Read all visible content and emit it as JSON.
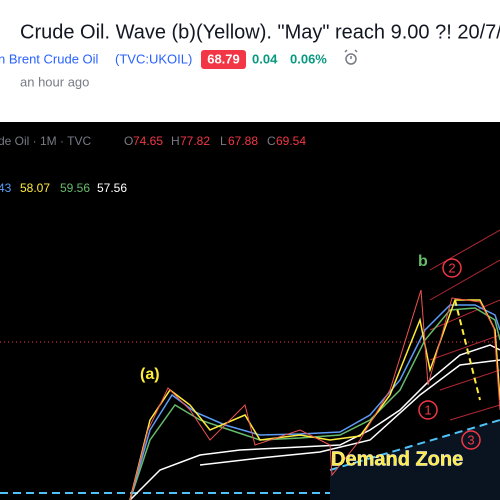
{
  "header": {
    "title": "Crude Oil. Wave (b)(Yellow). \"May\" reach 9.00 ?! 20/7/",
    "symbol_name": "n Brent Crude Oil",
    "symbol_code": "(TVC:UKOIL)",
    "price": "68.79",
    "change": "0.04",
    "change_percent": "0.06%",
    "time": "an hour ago"
  },
  "chart": {
    "legend": {
      "symbol": "de Oil · 1M · TVC",
      "open": {
        "label": "O",
        "value": "74.65"
      },
      "high": {
        "label": "H",
        "value": "77.82"
      },
      "low": {
        "label": "L",
        "value": "67.88"
      },
      "close": {
        "label": "C",
        "value": "69.54"
      }
    },
    "indicators": [
      "43",
      "58.07",
      "59.56",
      "57.56"
    ],
    "annotations": {
      "wave_a": "(a)",
      "wave_b": "b",
      "circle_1": "1",
      "circle_2": "2",
      "circle_3": "3",
      "demand_zone": "Demand Zone"
    }
  }
}
